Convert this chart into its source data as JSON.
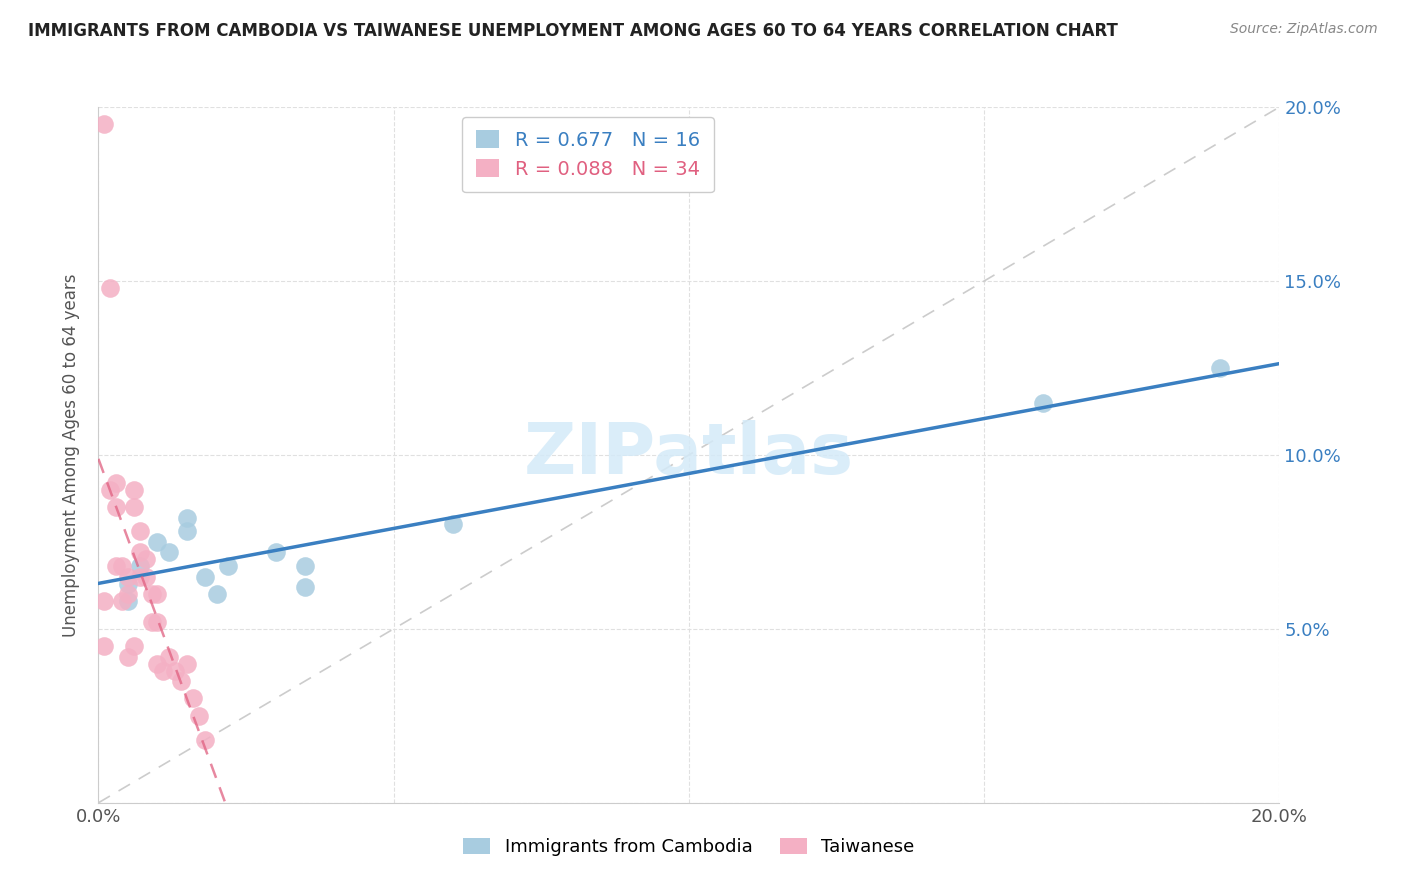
{
  "title": "IMMIGRANTS FROM CAMBODIA VS TAIWANESE UNEMPLOYMENT AMONG AGES 60 TO 64 YEARS CORRELATION CHART",
  "source": "Source: ZipAtlas.com",
  "ylabel": "Unemployment Among Ages 60 to 64 years",
  "xlim": [
    0.0,
    0.2
  ],
  "ylim": [
    0.0,
    0.2
  ],
  "xticks": [
    0.0,
    0.05,
    0.1,
    0.15,
    0.2
  ],
  "yticks": [
    0.0,
    0.05,
    0.1,
    0.15,
    0.2
  ],
  "cambodia_R": 0.677,
  "cambodia_N": 16,
  "taiwanese_R": 0.088,
  "taiwanese_N": 34,
  "cambodia_color": "#a8cce0",
  "taiwanese_color": "#f4b0c4",
  "cambodia_line_color": "#3a7fc1",
  "taiwanese_line_color": "#e06080",
  "grid_color": "#e0e0e0",
  "diag_color": "#cccccc",
  "watermark_color": "#d4eaf8",
  "cambodia_x": [
    0.005,
    0.005,
    0.007,
    0.01,
    0.012,
    0.015,
    0.015,
    0.018,
    0.02,
    0.022,
    0.03,
    0.035,
    0.035,
    0.06,
    0.16,
    0.19
  ],
  "cambodia_y": [
    0.063,
    0.058,
    0.068,
    0.075,
    0.072,
    0.078,
    0.082,
    0.065,
    0.06,
    0.068,
    0.072,
    0.068,
    0.062,
    0.08,
    0.115,
    0.125
  ],
  "taiwanese_x": [
    0.001,
    0.001,
    0.001,
    0.002,
    0.002,
    0.003,
    0.003,
    0.003,
    0.004,
    0.004,
    0.005,
    0.005,
    0.005,
    0.006,
    0.006,
    0.006,
    0.007,
    0.007,
    0.007,
    0.008,
    0.008,
    0.009,
    0.009,
    0.01,
    0.01,
    0.01,
    0.011,
    0.012,
    0.013,
    0.014,
    0.015,
    0.016,
    0.017,
    0.018
  ],
  "taiwanese_y": [
    0.195,
    0.058,
    0.045,
    0.148,
    0.09,
    0.092,
    0.085,
    0.068,
    0.068,
    0.058,
    0.065,
    0.06,
    0.042,
    0.09,
    0.085,
    0.045,
    0.078,
    0.072,
    0.065,
    0.07,
    0.065,
    0.06,
    0.052,
    0.06,
    0.052,
    0.04,
    0.038,
    0.042,
    0.038,
    0.035,
    0.04,
    0.03,
    0.025,
    0.018
  ]
}
